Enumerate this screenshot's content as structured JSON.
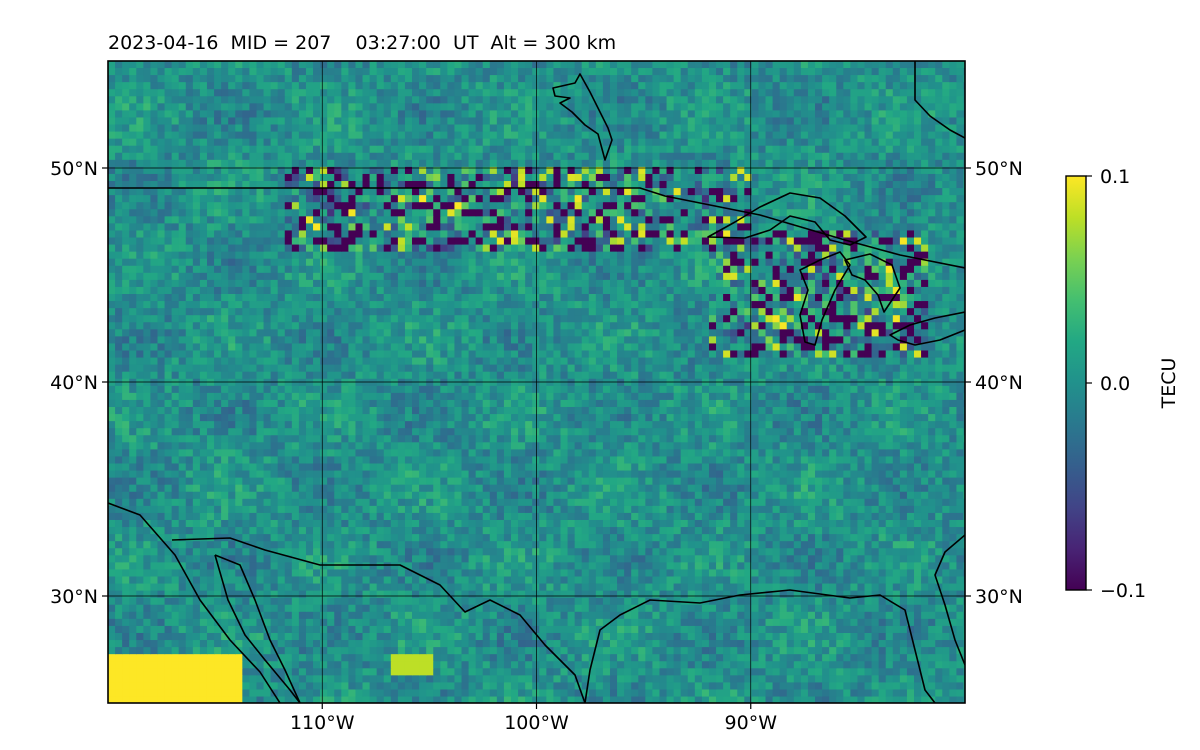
{
  "chart_data": {
    "type": "heatmap",
    "title": "2023-04-16  MID = 207    03:27:00  UT  Alt = 300 km",
    "map_projection": "plate carree",
    "xlim": [
      -120,
      -80
    ],
    "ylim": [
      25,
      55
    ],
    "x_ticks": [
      -110,
      -100,
      -90
    ],
    "x_tick_labels": [
      "110°W",
      "100°W",
      "90°W"
    ],
    "y_ticks": [
      30,
      40,
      50
    ],
    "y_tick_labels": [
      "30°N",
      "40°N",
      "50°N"
    ],
    "grid": true,
    "coastlines": true,
    "colormap": "viridis",
    "colorbar": {
      "label": "TECU",
      "vmin": -0.1,
      "vmax": 0.1,
      "ticks": [
        0.1,
        0.0,
        -0.1
      ],
      "tick_labels": [
        "0.1",
        "0.0",
        "−0.1"
      ],
      "placement": "right"
    },
    "grid_resolution_deg": [
      0.33,
      0.33
    ],
    "features": [
      {
        "description": "positive/negative fluctuation band",
        "lon": [
          -112,
          -90
        ],
        "lat": [
          46,
          50
        ],
        "value_range": [
          -0.1,
          0.1
        ]
      },
      {
        "description": "strong perturbations",
        "lon": [
          -92,
          -82
        ],
        "lat": [
          41,
          47
        ],
        "value_range": [
          -0.1,
          0.1
        ]
      },
      {
        "description": "positive blobs",
        "lon": [
          -120,
          -114
        ],
        "lat": [
          25,
          27
        ],
        "value": 0.1
      },
      {
        "description": "positive blob",
        "lon": [
          -107,
          -105
        ],
        "lat": [
          26,
          27
        ],
        "value": 0.08
      }
    ]
  }
}
